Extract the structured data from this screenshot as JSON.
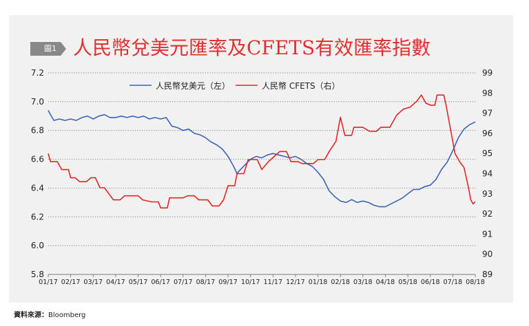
{
  "header": {
    "tag": "圖1",
    "title": "人民幣兌美元匯率及CFETS有效匯率指數"
  },
  "source": {
    "label": "資料來源：",
    "value": "Bloomberg"
  },
  "colors": {
    "usd_series": "#3a63b8",
    "cfets_series": "#e02424",
    "title": "#e03131",
    "panel": "#f1f1f1"
  },
  "chart_data": {
    "type": "line",
    "grid": true,
    "legend_position": "top",
    "x_tick_labels": [
      "01/17",
      "02/17",
      "03/17",
      "04/17",
      "05/17",
      "06/17",
      "07/17",
      "08/17",
      "09/17",
      "10/17",
      "11/17",
      "12/17",
      "01/18",
      "02/18",
      "03/18",
      "04/18",
      "05/18",
      "06/18",
      "07/18",
      "08/18"
    ],
    "left_axis": {
      "ylim": [
        5.8,
        7.2
      ],
      "ticks": [
        "5.8",
        "6.0",
        "6.2",
        "6.4",
        "6.6",
        "6.8",
        "7.0",
        "7.2"
      ]
    },
    "right_axis": {
      "ylim": [
        89,
        99
      ],
      "ticks": [
        "89",
        "90",
        "91",
        "92",
        "93",
        "94",
        "95",
        "96",
        "97",
        "98",
        "99"
      ]
    },
    "series": [
      {
        "name": "人民幣兌美元（左）",
        "axis": "left",
        "points": [
          [
            0.0,
            6.94
          ],
          [
            0.1,
            6.91
          ],
          [
            0.25,
            6.87
          ],
          [
            0.5,
            6.88
          ],
          [
            0.75,
            6.87
          ],
          [
            1.0,
            6.88
          ],
          [
            1.25,
            6.87
          ],
          [
            1.5,
            6.89
          ],
          [
            1.75,
            6.9
          ],
          [
            2.0,
            6.88
          ],
          [
            2.25,
            6.9
          ],
          [
            2.5,
            6.91
          ],
          [
            2.75,
            6.89
          ],
          [
            3.0,
            6.89
          ],
          [
            3.25,
            6.9
          ],
          [
            3.5,
            6.89
          ],
          [
            3.75,
            6.9
          ],
          [
            4.0,
            6.89
          ],
          [
            4.25,
            6.9
          ],
          [
            4.5,
            6.88
          ],
          [
            4.75,
            6.89
          ],
          [
            5.0,
            6.88
          ],
          [
            5.25,
            6.89
          ],
          [
            5.5,
            6.83
          ],
          [
            5.75,
            6.82
          ],
          [
            6.0,
            6.8
          ],
          [
            6.25,
            6.81
          ],
          [
            6.5,
            6.78
          ],
          [
            6.75,
            6.77
          ],
          [
            7.0,
            6.75
          ],
          [
            7.25,
            6.72
          ],
          [
            7.5,
            6.7
          ],
          [
            7.75,
            6.67
          ],
          [
            8.0,
            6.62
          ],
          [
            8.25,
            6.55
          ],
          [
            8.4,
            6.5
          ],
          [
            8.5,
            6.52
          ],
          [
            8.75,
            6.56
          ],
          [
            9.0,
            6.6
          ],
          [
            9.25,
            6.62
          ],
          [
            9.5,
            6.61
          ],
          [
            9.75,
            6.63
          ],
          [
            10.0,
            6.64
          ],
          [
            10.25,
            6.63
          ],
          [
            10.5,
            6.62
          ],
          [
            10.75,
            6.61
          ],
          [
            11.0,
            6.62
          ],
          [
            11.25,
            6.6
          ],
          [
            11.5,
            6.57
          ],
          [
            11.75,
            6.55
          ],
          [
            12.0,
            6.51
          ],
          [
            12.25,
            6.46
          ],
          [
            12.5,
            6.38
          ],
          [
            12.75,
            6.34
          ],
          [
            13.0,
            6.31
          ],
          [
            13.25,
            6.3
          ],
          [
            13.5,
            6.32
          ],
          [
            13.75,
            6.3
          ],
          [
            14.0,
            6.31
          ],
          [
            14.25,
            6.3
          ],
          [
            14.5,
            6.28
          ],
          [
            14.75,
            6.27
          ],
          [
            15.0,
            6.27
          ],
          [
            15.25,
            6.29
          ],
          [
            15.5,
            6.31
          ],
          [
            15.75,
            6.33
          ],
          [
            16.0,
            6.36
          ],
          [
            16.25,
            6.39
          ],
          [
            16.5,
            6.39
          ],
          [
            16.75,
            6.41
          ],
          [
            17.0,
            6.42
          ],
          [
            17.25,
            6.46
          ],
          [
            17.5,
            6.53
          ],
          [
            17.75,
            6.58
          ],
          [
            18.0,
            6.66
          ],
          [
            18.25,
            6.75
          ],
          [
            18.5,
            6.81
          ],
          [
            18.75,
            6.84
          ],
          [
            19.0,
            6.86
          ]
        ]
      },
      {
        "name": "人民幣 CFETS（右）",
        "axis": "right",
        "points": [
          [
            0.0,
            95.0
          ],
          [
            0.1,
            94.6
          ],
          [
            0.4,
            94.6
          ],
          [
            0.6,
            94.2
          ],
          [
            0.9,
            94.2
          ],
          [
            1.0,
            93.8
          ],
          [
            1.2,
            93.8
          ],
          [
            1.4,
            93.6
          ],
          [
            1.7,
            93.6
          ],
          [
            1.9,
            93.8
          ],
          [
            2.1,
            93.8
          ],
          [
            2.3,
            93.3
          ],
          [
            2.5,
            93.3
          ],
          [
            2.7,
            93.0
          ],
          [
            2.9,
            92.7
          ],
          [
            3.2,
            92.7
          ],
          [
            3.4,
            92.9
          ],
          [
            4.0,
            92.9
          ],
          [
            4.2,
            92.7
          ],
          [
            4.6,
            92.6
          ],
          [
            4.9,
            92.6
          ],
          [
            5.0,
            92.3
          ],
          [
            5.3,
            92.3
          ],
          [
            5.4,
            92.8
          ],
          [
            5.7,
            92.8
          ],
          [
            6.0,
            92.8
          ],
          [
            6.2,
            92.9
          ],
          [
            6.5,
            92.9
          ],
          [
            6.7,
            92.7
          ],
          [
            7.1,
            92.7
          ],
          [
            7.3,
            92.4
          ],
          [
            7.6,
            92.4
          ],
          [
            7.8,
            92.7
          ],
          [
            8.0,
            93.4
          ],
          [
            8.3,
            93.4
          ],
          [
            8.4,
            94.0
          ],
          [
            8.7,
            94.0
          ],
          [
            8.9,
            94.7
          ],
          [
            9.3,
            94.7
          ],
          [
            9.5,
            94.2
          ],
          [
            9.8,
            94.6
          ],
          [
            10.0,
            94.8
          ],
          [
            10.3,
            95.1
          ],
          [
            10.6,
            95.1
          ],
          [
            10.8,
            94.6
          ],
          [
            11.1,
            94.6
          ],
          [
            11.3,
            94.5
          ],
          [
            11.8,
            94.5
          ],
          [
            12.0,
            94.7
          ],
          [
            12.3,
            94.7
          ],
          [
            12.5,
            95.1
          ],
          [
            12.8,
            95.6
          ],
          [
            13.0,
            96.8
          ],
          [
            13.2,
            95.9
          ],
          [
            13.5,
            95.9
          ],
          [
            13.6,
            96.3
          ],
          [
            14.0,
            96.3
          ],
          [
            14.3,
            96.1
          ],
          [
            14.6,
            96.1
          ],
          [
            14.8,
            96.3
          ],
          [
            15.2,
            96.3
          ],
          [
            15.5,
            96.9
          ],
          [
            15.8,
            97.2
          ],
          [
            16.1,
            97.3
          ],
          [
            16.4,
            97.6
          ],
          [
            16.6,
            97.9
          ],
          [
            16.8,
            97.5
          ],
          [
            17.0,
            97.4
          ],
          [
            17.2,
            97.4
          ],
          [
            17.3,
            97.9
          ],
          [
            17.6,
            97.9
          ],
          [
            17.7,
            97.4
          ],
          [
            17.9,
            96.2
          ],
          [
            18.1,
            95.0
          ],
          [
            18.3,
            94.6
          ],
          [
            18.5,
            94.3
          ],
          [
            18.7,
            93.3
          ],
          [
            18.8,
            92.7
          ],
          [
            18.9,
            92.5
          ],
          [
            19.0,
            92.6
          ]
        ]
      }
    ]
  }
}
